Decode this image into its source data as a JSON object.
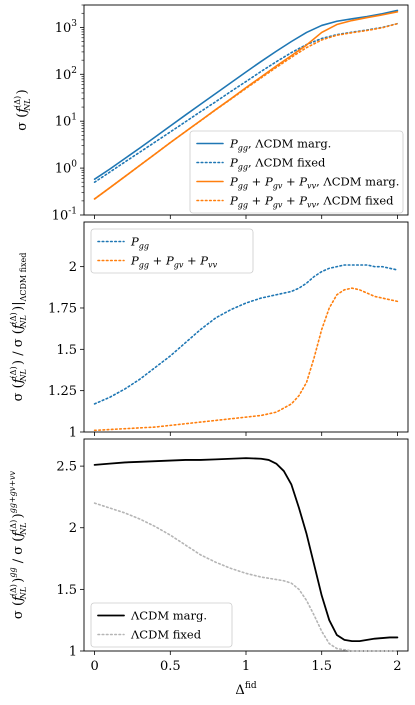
{
  "colors": {
    "blue": "#1f77b4",
    "orange": "#ff7f0e",
    "black": "#000000",
    "grey": "#b5b5b5"
  },
  "shared_x": {
    "label": "Δ^fid",
    "ticks": [
      "0",
      "0.5",
      "1",
      "1.5",
      "2"
    ],
    "tick_values": [
      0,
      0.5,
      1,
      1.5,
      2
    ],
    "xlim": [
      -0.07,
      2.07
    ]
  },
  "chart_data": [
    {
      "type": "line",
      "panel": "top",
      "ylabel": "σ(f_NL^(Δ))",
      "yscale": "log",
      "ylim": [
        0.1,
        3000
      ],
      "yticks": [
        "10^{-1}",
        "10^{0}",
        "10^{1}",
        "10^{2}",
        "10^{3}"
      ],
      "ytick_values": [
        0.1,
        1,
        10,
        100,
        1000
      ],
      "legend_position": "lower-right",
      "x": [
        0,
        0.1,
        0.2,
        0.3,
        0.4,
        0.5,
        0.6,
        0.7,
        0.8,
        0.9,
        1.0,
        1.1,
        1.2,
        1.3,
        1.4,
        1.5,
        1.6,
        1.7,
        1.8,
        1.9,
        2.0
      ],
      "series": [
        {
          "name": "P_gg, ΛCDM marg.",
          "color": "blue",
          "dash": "solid",
          "values": [
            0.58,
            0.95,
            1.6,
            2.7,
            4.6,
            7.9,
            13.5,
            23,
            39,
            66,
            112,
            188,
            310,
            500,
            780,
            1100,
            1350,
            1520,
            1700,
            1950,
            2300
          ]
        },
        {
          "name": "P_gg, ΛCDM fixed",
          "color": "blue",
          "dash": "dotted",
          "values": [
            0.5,
            0.82,
            1.35,
            2.2,
            3.6,
            5.9,
            9.7,
            16,
            26,
            43,
            70,
            115,
            185,
            290,
            430,
            580,
            700,
            790,
            880,
            1000,
            1200
          ]
        },
        {
          "name": "P_gg + P_gv + P_vv, ΛCDM marg.",
          "color": "orange",
          "dash": "solid",
          "values": [
            0.22,
            0.38,
            0.66,
            1.15,
            2.0,
            3.5,
            6.0,
            10.3,
            17.7,
            30,
            52,
            88,
            150,
            250,
            420,
            780,
            1150,
            1400,
            1620,
            1850,
            2150
          ]
        },
        {
          "name": "P_gg + P_gv + P_vv, ΛCDM fixed",
          "color": "orange",
          "dash": "dotted",
          "values": [
            0.22,
            0.38,
            0.66,
            1.15,
            2.0,
            3.5,
            6.0,
            10.2,
            17.5,
            29.5,
            50,
            84,
            140,
            230,
            370,
            540,
            680,
            770,
            860,
            980,
            1200
          ]
        }
      ]
    },
    {
      "type": "line",
      "panel": "middle",
      "ylabel": "σ(f_NL^(Δ)) / σ(f_NL^(Δ)) |_ΛCDM fixed",
      "ylim": [
        1,
        2.27
      ],
      "yticks": [
        "1",
        "1.25",
        "1.5",
        "1.75",
        "2"
      ],
      "ytick_values": [
        1,
        1.25,
        1.5,
        1.75,
        2
      ],
      "legend_position": "upper-left",
      "x": [
        0,
        0.1,
        0.2,
        0.3,
        0.4,
        0.5,
        0.6,
        0.7,
        0.8,
        0.9,
        1.0,
        1.1,
        1.2,
        1.3,
        1.35,
        1.4,
        1.45,
        1.5,
        1.55,
        1.6,
        1.65,
        1.7,
        1.75,
        1.8,
        1.85,
        1.9,
        1.95,
        2.0
      ],
      "series": [
        {
          "name": "P_gg",
          "color": "blue",
          "dash": "dotted",
          "values": [
            1.17,
            1.21,
            1.26,
            1.32,
            1.39,
            1.46,
            1.54,
            1.62,
            1.69,
            1.74,
            1.78,
            1.81,
            1.83,
            1.85,
            1.87,
            1.9,
            1.94,
            1.97,
            1.99,
            2.0,
            2.01,
            2.01,
            2.01,
            2.01,
            2.0,
            2.0,
            1.99,
            1.98
          ]
        },
        {
          "name": "P_gg + P_gv + P_vv",
          "color": "orange",
          "dash": "dotted",
          "values": [
            1.01,
            1.015,
            1.02,
            1.025,
            1.03,
            1.04,
            1.05,
            1.06,
            1.07,
            1.08,
            1.09,
            1.1,
            1.12,
            1.17,
            1.22,
            1.3,
            1.45,
            1.62,
            1.75,
            1.83,
            1.86,
            1.87,
            1.86,
            1.84,
            1.82,
            1.81,
            1.8,
            1.79
          ]
        }
      ]
    },
    {
      "type": "line",
      "panel": "bottom",
      "ylabel": "σ(f_NL^(Δ))^gg / σ(f_NL^(Δ))^(gg+gv+vv)",
      "ylim": [
        1,
        2.72
      ],
      "yticks": [
        "1",
        "1.5",
        "2",
        "2.5"
      ],
      "ytick_values": [
        1,
        1.5,
        2,
        2.5
      ],
      "legend_position": "lower-left",
      "x": [
        0,
        0.1,
        0.2,
        0.3,
        0.4,
        0.5,
        0.6,
        0.7,
        0.8,
        0.9,
        1.0,
        1.1,
        1.15,
        1.2,
        1.25,
        1.3,
        1.35,
        1.4,
        1.45,
        1.5,
        1.55,
        1.6,
        1.65,
        1.7,
        1.75,
        1.8,
        1.85,
        1.9,
        1.95,
        2.0
      ],
      "series": [
        {
          "name": "ΛCDM marg.",
          "color": "black",
          "dash": "solid",
          "values": [
            2.51,
            2.52,
            2.53,
            2.535,
            2.54,
            2.545,
            2.55,
            2.55,
            2.555,
            2.56,
            2.565,
            2.56,
            2.55,
            2.52,
            2.46,
            2.35,
            2.16,
            1.95,
            1.7,
            1.45,
            1.25,
            1.13,
            1.09,
            1.08,
            1.08,
            1.09,
            1.1,
            1.105,
            1.11,
            1.11
          ]
        },
        {
          "name": "ΛCDM fixed",
          "color": "grey",
          "dash": "dotted",
          "values": [
            2.2,
            2.16,
            2.12,
            2.07,
            2.01,
            1.94,
            1.86,
            1.78,
            1.72,
            1.67,
            1.63,
            1.6,
            1.59,
            1.58,
            1.57,
            1.55,
            1.5,
            1.41,
            1.29,
            1.16,
            1.06,
            1.02,
            1.01,
            1.0,
            1.0,
            1.0,
            1.0,
            1.0,
            1.0,
            1.0
          ]
        }
      ]
    }
  ]
}
